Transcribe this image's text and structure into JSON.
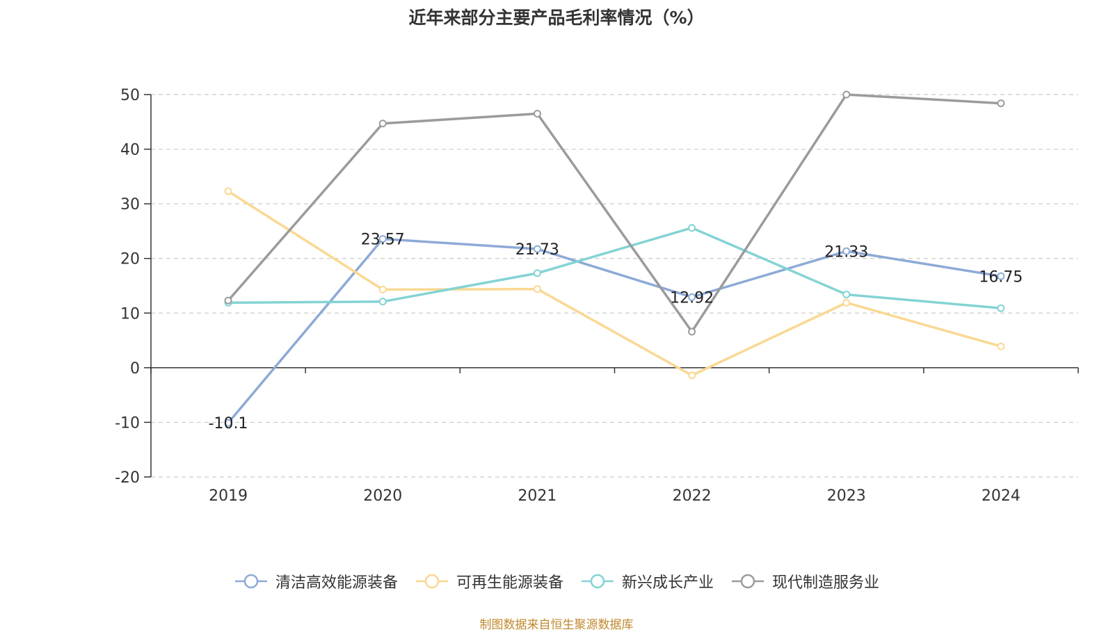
{
  "title": "近年来部分主要产品毛利率情况（%）",
  "source": "制图数据来自恒生聚源数据库",
  "chart_data": {
    "type": "line",
    "categories": [
      "2019",
      "2020",
      "2021",
      "2022",
      "2023",
      "2024"
    ],
    "ylim": [
      -20,
      50
    ],
    "yticks": [
      50,
      40,
      30,
      20,
      10,
      0,
      -10,
      -20
    ],
    "grid": true,
    "legend_position": "bottom",
    "series": [
      {
        "name": "清洁高效能源装备",
        "color": "#8daad6",
        "values": [
          -10.1,
          23.57,
          21.73,
          12.92,
          21.33,
          16.75
        ],
        "labels": [
          "-10.1",
          "23.57",
          "21.73",
          "12.92",
          "21.33",
          "16.75"
        ]
      },
      {
        "name": "可再生能源装备",
        "color": "#fad892",
        "values": [
          32.3,
          14.3,
          14.4,
          -1.4,
          11.9,
          3.9
        ]
      },
      {
        "name": "新兴成长产业",
        "color": "#84d3d4",
        "values": [
          11.9,
          12.1,
          17.3,
          25.6,
          13.4,
          10.9
        ]
      },
      {
        "name": "现代制造服务业",
        "color": "#9b9b9b",
        "values": [
          12.3,
          44.7,
          46.5,
          6.6,
          50.0,
          48.4
        ]
      }
    ]
  }
}
